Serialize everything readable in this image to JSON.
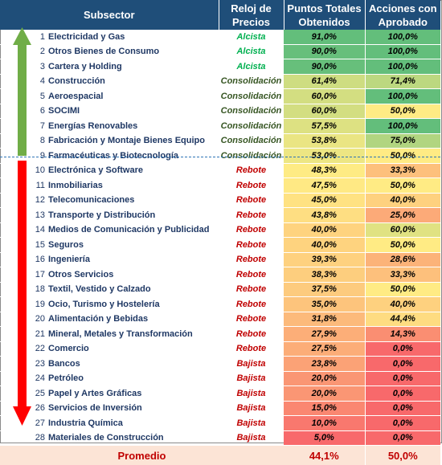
{
  "headers": {
    "subsector": "Subsector",
    "reloj": "Reloj de\nPrecios",
    "puntos": "Puntos Totales\nObtenidos",
    "acciones": "Acciones con\nAprobado"
  },
  "colors": {
    "header_bg": "#1f4e79",
    "alcista": "#00b050",
    "consolidacion": "#375623",
    "rebote": "#c00000",
    "bajista": "#c00000",
    "green_arrow": "#70ad47",
    "red_arrow": "#ff0000",
    "separator": "#2e75b6"
  },
  "rows": [
    {
      "idx": "1",
      "name": "Electricidad y Gas",
      "reloj": "Alcista",
      "puntos": "91,0%",
      "acciones": "100,0%"
    },
    {
      "idx": "2",
      "name": "Otros Bienes de Consumo",
      "reloj": "Alcista",
      "puntos": "90,0%",
      "acciones": "100,0%"
    },
    {
      "idx": "3",
      "name": "Cartera y Holding",
      "reloj": "Alcista",
      "puntos": "90,0%",
      "acciones": "100,0%"
    },
    {
      "idx": "4",
      "name": "Construcción",
      "reloj": "Consolidación",
      "puntos": "61,4%",
      "acciones": "71,4%"
    },
    {
      "idx": "5",
      "name": "Aeroespacial",
      "reloj": "Consolidación",
      "puntos": "60,0%",
      "acciones": "100,0%"
    },
    {
      "idx": "6",
      "name": "SOCIMI",
      "reloj": "Consolidación",
      "puntos": "60,0%",
      "acciones": "50,0%"
    },
    {
      "idx": "7",
      "name": "Energías Renovables",
      "reloj": "Consolidación",
      "puntos": "57,5%",
      "acciones": "100,0%"
    },
    {
      "idx": "8",
      "name": "Fabricación y Montaje Bienes Equipo",
      "reloj": "Consolidación",
      "puntos": "53,8%",
      "acciones": "75,0%"
    },
    {
      "idx": "9",
      "name": "Farmacéuticas y Biotecnología",
      "reloj": "Consolidación",
      "puntos": "53,0%",
      "acciones": "50,0%"
    },
    {
      "idx": "10",
      "name": "Electrónica y Software",
      "reloj": "Rebote",
      "puntos": "48,3%",
      "acciones": "33,3%"
    },
    {
      "idx": "11",
      "name": "Inmobiliarias",
      "reloj": "Rebote",
      "puntos": "47,5%",
      "acciones": "50,0%"
    },
    {
      "idx": "12",
      "name": "Telecomunicaciones",
      "reloj": "Rebote",
      "puntos": "45,0%",
      "acciones": "40,0%"
    },
    {
      "idx": "13",
      "name": "Transporte y Distribución",
      "reloj": "Rebote",
      "puntos": "43,8%",
      "acciones": "25,0%"
    },
    {
      "idx": "14",
      "name": "Medios de Comunicación y Publicidad",
      "reloj": "Rebote",
      "puntos": "40,0%",
      "acciones": "60,0%"
    },
    {
      "idx": "15",
      "name": "Seguros",
      "reloj": "Rebote",
      "puntos": "40,0%",
      "acciones": "50,0%"
    },
    {
      "idx": "16",
      "name": "Ingeniería",
      "reloj": "Rebote",
      "puntos": "39,3%",
      "acciones": "28,6%"
    },
    {
      "idx": "17",
      "name": "Otros Servicios",
      "reloj": "Rebote",
      "puntos": "38,3%",
      "acciones": "33,3%"
    },
    {
      "idx": "18",
      "name": "Textil, Vestido y Calzado",
      "reloj": "Rebote",
      "puntos": "37,5%",
      "acciones": "50,0%"
    },
    {
      "idx": "19",
      "name": "Ocio, Turismo y Hostelería",
      "reloj": "Rebote",
      "puntos": "35,0%",
      "acciones": "40,0%"
    },
    {
      "idx": "20",
      "name": "Alimentación y Bebidas",
      "reloj": "Rebote",
      "puntos": "31,8%",
      "acciones": "44,4%"
    },
    {
      "idx": "21",
      "name": "Mineral, Metales y Transformación",
      "reloj": "Rebote",
      "puntos": "27,9%",
      "acciones": "14,3%"
    },
    {
      "idx": "22",
      "name": "Comercio",
      "reloj": "Rebote",
      "puntos": "27,5%",
      "acciones": "0,0%"
    },
    {
      "idx": "23",
      "name": "Bancos",
      "reloj": "Bajista",
      "puntos": "23,8%",
      "acciones": "0,0%"
    },
    {
      "idx": "24",
      "name": "Petróleo",
      "reloj": "Bajista",
      "puntos": "20,0%",
      "acciones": "0,0%"
    },
    {
      "idx": "25",
      "name": "Papel y Artes Gráficas",
      "reloj": "Bajista",
      "puntos": "20,0%",
      "acciones": "0,0%"
    },
    {
      "idx": "26",
      "name": "Servicios de Inversión",
      "reloj": "Bajista",
      "puntos": "15,0%",
      "acciones": "0,0%"
    },
    {
      "idx": "27",
      "name": "Industria Química",
      "reloj": "Bajista",
      "puntos": "10,0%",
      "acciones": "0,0%"
    },
    {
      "idx": "28",
      "name": "Materiales de Construcción",
      "reloj": "Bajista",
      "puntos": "5,0%",
      "acciones": "0,0%"
    }
  ],
  "average": {
    "label": "Promedio",
    "puntos": "44,1%",
    "acciones": "50,0%"
  }
}
